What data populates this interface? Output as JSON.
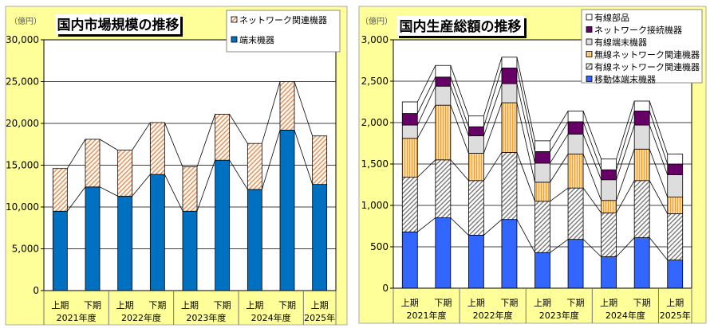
{
  "chart_data": [
    {
      "type": "bar",
      "stacked": true,
      "title": "国内市場規模の推移",
      "unit_label": "（億円）",
      "ylim": [
        0,
        30000
      ],
      "yticks": [
        "0",
        "5,000",
        "10,000",
        "15,000",
        "20,000",
        "25,000",
        "30,000"
      ],
      "categories": [
        "上期",
        "下期",
        "上期",
        "下期",
        "上期",
        "下期",
        "上期",
        "下期",
        "上期"
      ],
      "groups": [
        {
          "label": "2021年度",
          "span": 2
        },
        {
          "label": "2022年度",
          "span": 2
        },
        {
          "label": "2023年度",
          "span": 2
        },
        {
          "label": "2024年度",
          "span": 2
        },
        {
          "label": "2025年",
          "span": 1
        }
      ],
      "legend_position": "top-right",
      "series": [
        {
          "name": "端末機器",
          "color": "#0070c0",
          "pattern": "solid",
          "values": [
            9500,
            12400,
            11300,
            13900,
            9500,
            15600,
            12100,
            19200,
            12700
          ]
        },
        {
          "name": "ネットワーク関連機器",
          "color": "#f4a460",
          "pattern": "diag",
          "values": [
            5100,
            5700,
            5500,
            6200,
            5300,
            5500,
            5500,
            5800,
            5800
          ]
        }
      ]
    },
    {
      "type": "bar",
      "stacked": true,
      "title": "国内生産総額の推移",
      "unit_label": "（億円）",
      "ylim": [
        0,
        3000
      ],
      "yticks": [
        "0",
        "500",
        "1,000",
        "1,500",
        "2,000",
        "2,500",
        "3,000"
      ],
      "categories": [
        "上期",
        "下期",
        "上期",
        "下期",
        "上期",
        "下期",
        "上期",
        "下期",
        "上期"
      ],
      "groups": [
        {
          "label": "2021年度",
          "span": 2
        },
        {
          "label": "2022年度",
          "span": 2
        },
        {
          "label": "2023年度",
          "span": 2
        },
        {
          "label": "2024年度",
          "span": 2
        },
        {
          "label": "2025年",
          "span": 1
        }
      ],
      "legend_position": "top-right",
      "series": [
        {
          "name": "移動体端末機器",
          "color": "#3366ff",
          "pattern": "solid",
          "values": [
            680,
            850,
            640,
            830,
            430,
            590,
            380,
            610,
            340
          ]
        },
        {
          "name": "有線ネットワーク関連機器",
          "color": "#888888",
          "pattern": "grayhatch",
          "values": [
            660,
            700,
            660,
            810,
            620,
            620,
            530,
            690,
            560
          ]
        },
        {
          "name": "無線ネットワーク関連機器",
          "color": "#ffcc80",
          "pattern": "vstripe",
          "values": [
            470,
            660,
            330,
            600,
            230,
            410,
            150,
            380,
            200
          ]
        },
        {
          "name": "有線端末機器",
          "color": "#dddddd",
          "pattern": "solid",
          "values": [
            160,
            230,
            210,
            230,
            230,
            240,
            250,
            290,
            270
          ]
        },
        {
          "name": "ネットワーク接続機器",
          "color": "#660066",
          "pattern": "solid",
          "values": [
            140,
            110,
            110,
            190,
            140,
            150,
            120,
            170,
            130
          ]
        },
        {
          "name": "有線部品",
          "color": "#ffffff",
          "pattern": "solid",
          "values": [
            140,
            140,
            130,
            130,
            130,
            130,
            130,
            120,
            120
          ]
        }
      ]
    }
  ]
}
